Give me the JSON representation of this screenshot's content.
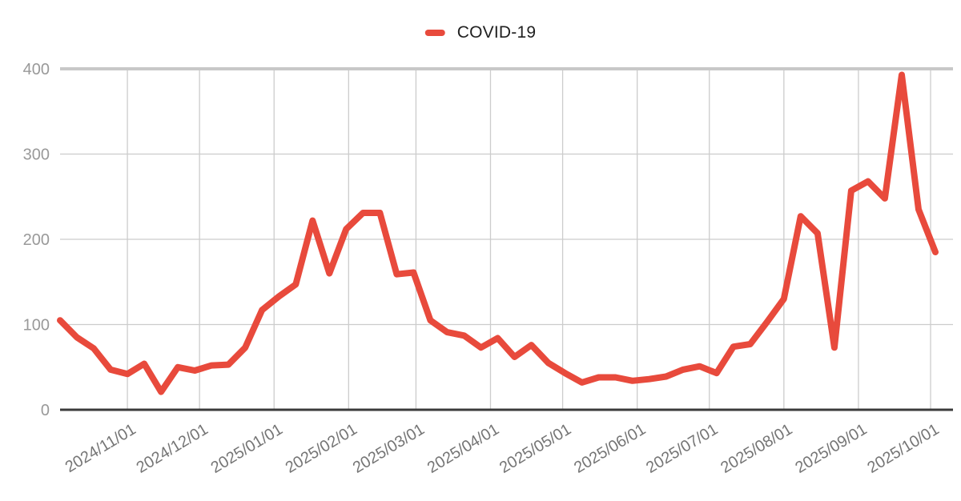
{
  "page": {
    "background": "#ffffff"
  },
  "legend": {
    "position": "top-center",
    "swatch_color": "#e84a3c"
  },
  "chart_data": {
    "type": "line",
    "title": "",
    "xlabel": "",
    "ylabel": "",
    "grid": true,
    "legend_position": "top-center",
    "ylim": [
      0,
      400
    ],
    "y_ticks": [
      0,
      100,
      200,
      300,
      400
    ],
    "x_tick_labels": [
      "2024/11/01",
      "2024/12/01",
      "2025/01/01",
      "2025/02/01",
      "2025/03/01",
      "2025/04/01",
      "2025/05/01",
      "2025/06/01",
      "2025/07/01",
      "2025/08/01",
      "2025/09/01",
      "2025/10/01"
    ],
    "series": [
      {
        "name": "COVID-19",
        "color": "#e84a3c",
        "x": [
          "2024/10/04",
          "2024/10/11",
          "2024/10/18",
          "2024/10/25",
          "2024/11/01",
          "2024/11/08",
          "2024/11/15",
          "2024/11/22",
          "2024/11/29",
          "2024/12/06",
          "2024/12/13",
          "2024/12/20",
          "2024/12/27",
          "2025/01/03",
          "2025/01/10",
          "2025/01/17",
          "2025/01/24",
          "2025/01/31",
          "2025/02/07",
          "2025/02/14",
          "2025/02/21",
          "2025/02/28",
          "2025/03/07",
          "2025/03/14",
          "2025/03/21",
          "2025/03/28",
          "2025/04/04",
          "2025/04/11",
          "2025/04/18",
          "2025/04/25",
          "2025/05/02",
          "2025/05/09",
          "2025/05/16",
          "2025/05/23",
          "2025/05/30",
          "2025/06/06",
          "2025/06/13",
          "2025/06/20",
          "2025/06/27",
          "2025/07/04",
          "2025/07/11",
          "2025/07/18",
          "2025/07/25",
          "2025/08/01",
          "2025/08/08",
          "2025/08/15",
          "2025/08/22",
          "2025/08/29",
          "2025/09/05",
          "2025/09/12",
          "2025/09/19",
          "2025/09/26",
          "2025/10/03"
        ],
        "values": [
          105,
          85,
          72,
          47,
          42,
          54,
          21,
          50,
          46,
          52,
          53,
          73,
          117,
          133,
          147,
          222,
          160,
          212,
          231,
          231,
          159,
          161,
          105,
          91,
          87,
          73,
          84,
          62,
          76,
          55,
          43,
          32,
          38,
          38,
          34,
          36,
          39,
          47,
          51,
          43,
          74,
          77,
          103,
          130,
          227,
          207,
          73,
          257,
          268,
          248,
          393,
          235,
          185
        ]
      }
    ],
    "style": {
      "line_width": 8,
      "gridline_color": "#cccccc",
      "top_border_color": "#c8c8c8",
      "zero_axis_color": "#3b3b3b",
      "y_label_color": "#999999",
      "x_label_color": "#757575",
      "x_label_rotation_deg": -31
    }
  }
}
